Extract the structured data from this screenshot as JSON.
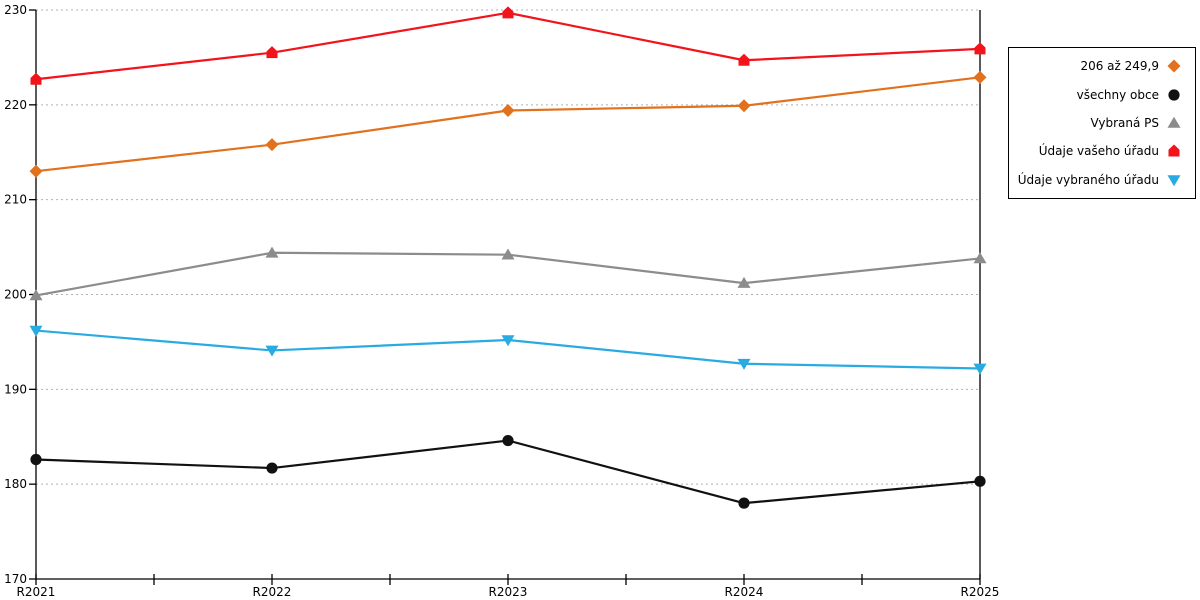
{
  "chart_data": {
    "type": "line",
    "title": "",
    "xlabel": "",
    "ylabel": "",
    "x_categories": [
      "R2021",
      "R2022",
      "R2023",
      "R2024",
      "R2025"
    ],
    "ylim": [
      170,
      230
    ],
    "y_ticks": [
      170,
      180,
      190,
      200,
      210,
      220,
      230
    ],
    "grid": "horizontal dotted gridlines at each y tick",
    "legend_position": "outside-right, boxed, right-aligned labels with marker at right",
    "series": [
      {
        "name": "206 až 249,9",
        "marker": "diamond",
        "color": "#E2711D",
        "values": [
          213.0,
          215.8,
          219.4,
          219.9,
          222.9
        ]
      },
      {
        "name": "všechny obce",
        "marker": "circle",
        "color": "#111111",
        "values": [
          182.6,
          181.7,
          184.6,
          178.0,
          180.3
        ]
      },
      {
        "name": "Vybraná PS",
        "marker": "triangle-up",
        "color": "#8C8C8C",
        "values": [
          199.9,
          204.4,
          204.2,
          201.2,
          203.8
        ]
      },
      {
        "name": "Údaje vašeho úřadu",
        "marker": "pentagon",
        "color": "#F2131B",
        "values": [
          222.7,
          225.5,
          229.7,
          224.7,
          225.9
        ]
      },
      {
        "name": "Údaje vybraného úřadu",
        "marker": "triangle-down",
        "color": "#29ABE2",
        "values": [
          196.2,
          194.1,
          195.2,
          192.7,
          192.2
        ]
      }
    ]
  },
  "style": {
    "axis_color": "#000000",
    "gridline_color": "#B0B0B0",
    "tick_label_color": "#000000",
    "plot_background": "#FFFFFF"
  }
}
